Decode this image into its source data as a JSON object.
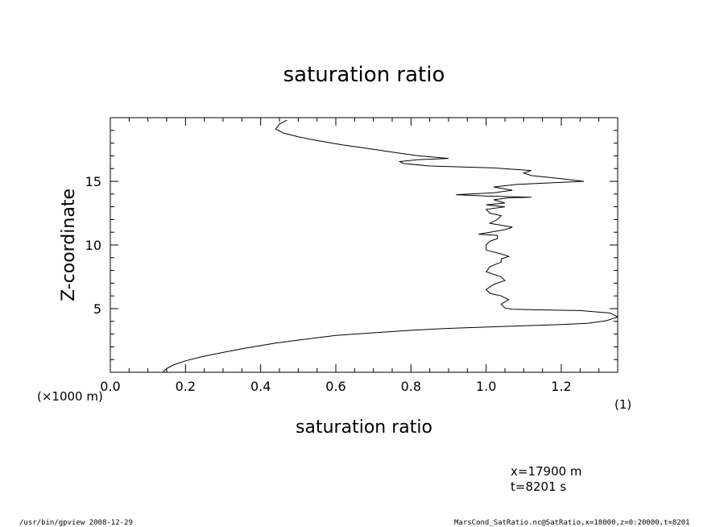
{
  "chart_data": {
    "type": "line",
    "title": "saturation ratio",
    "xlabel": "saturation ratio",
    "ylabel": "Z-coordinate",
    "x_unit_label": "(1)",
    "y_unit_label": "(×1000 m)",
    "xlim": [
      0.0,
      1.35
    ],
    "ylim": [
      0,
      20
    ],
    "xticks": [
      0.0,
      0.2,
      0.4,
      0.6,
      0.8,
      1.0,
      1.2
    ],
    "yticks": [
      5,
      10,
      15
    ],
    "xtick_labels": [
      "0.0",
      "0.2",
      "0.4",
      "0.6",
      "0.8",
      "1.0",
      "1.2"
    ],
    "ytick_labels": [
      "5",
      "10",
      "15"
    ],
    "grid": false,
    "series": [
      {
        "points": [
          [
            0.14,
            0.0
          ],
          [
            0.15,
            0.3
          ],
          [
            0.17,
            0.6
          ],
          [
            0.2,
            0.9
          ],
          [
            0.24,
            1.2
          ],
          [
            0.29,
            1.5
          ],
          [
            0.36,
            1.9
          ],
          [
            0.44,
            2.3
          ],
          [
            0.52,
            2.6
          ],
          [
            0.6,
            2.9
          ],
          [
            0.7,
            3.1
          ],
          [
            0.8,
            3.3
          ],
          [
            0.9,
            3.45
          ],
          [
            1.0,
            3.55
          ],
          [
            1.1,
            3.65
          ],
          [
            1.2,
            3.75
          ],
          [
            1.27,
            3.85
          ],
          [
            1.32,
            4.05
          ],
          [
            1.35,
            4.35
          ],
          [
            1.33,
            4.65
          ],
          [
            1.25,
            4.85
          ],
          [
            1.15,
            4.9
          ],
          [
            1.07,
            4.95
          ],
          [
            1.05,
            5.05
          ],
          [
            1.04,
            5.35
          ],
          [
            1.06,
            5.7
          ],
          [
            1.04,
            6.0
          ],
          [
            1.01,
            6.2
          ],
          [
            1.0,
            6.5
          ],
          [
            1.02,
            6.9
          ],
          [
            1.05,
            7.2
          ],
          [
            1.04,
            7.5
          ],
          [
            1.0,
            7.9
          ],
          [
            1.01,
            8.3
          ],
          [
            1.04,
            8.65
          ],
          [
            1.04,
            8.9
          ],
          [
            1.06,
            9.1
          ],
          [
            1.04,
            9.3
          ],
          [
            1.0,
            9.6
          ],
          [
            1.0,
            10.0
          ],
          [
            1.01,
            10.3
          ],
          [
            1.03,
            10.5
          ],
          [
            1.03,
            10.75
          ],
          [
            0.98,
            10.85
          ],
          [
            1.01,
            11.0
          ],
          [
            1.05,
            11.2
          ],
          [
            1.07,
            11.4
          ],
          [
            1.01,
            11.7
          ],
          [
            1.03,
            12.0
          ],
          [
            1.04,
            12.3
          ],
          [
            1.01,
            12.5
          ],
          [
            1.0,
            12.8
          ],
          [
            1.05,
            13.0
          ],
          [
            1.0,
            13.15
          ],
          [
            1.05,
            13.3
          ],
          [
            1.02,
            13.55
          ],
          [
            1.06,
            13.7
          ],
          [
            1.12,
            13.75
          ],
          [
            1.0,
            13.85
          ],
          [
            0.92,
            13.95
          ],
          [
            1.02,
            14.1
          ],
          [
            1.07,
            14.3
          ],
          [
            1.02,
            14.55
          ],
          [
            1.08,
            14.75
          ],
          [
            1.15,
            14.85
          ],
          [
            1.26,
            15.0
          ],
          [
            1.2,
            15.2
          ],
          [
            1.12,
            15.45
          ],
          [
            1.1,
            15.65
          ],
          [
            1.12,
            15.85
          ],
          [
            1.07,
            15.95
          ],
          [
            1.02,
            16.05
          ],
          [
            0.85,
            16.2
          ],
          [
            0.78,
            16.4
          ],
          [
            0.77,
            16.55
          ],
          [
            0.82,
            16.7
          ],
          [
            0.9,
            16.8
          ],
          [
            0.82,
            17.0
          ],
          [
            0.75,
            17.3
          ],
          [
            0.68,
            17.6
          ],
          [
            0.62,
            17.85
          ],
          [
            0.55,
            18.2
          ],
          [
            0.5,
            18.5
          ],
          [
            0.46,
            18.8
          ],
          [
            0.44,
            19.1
          ],
          [
            0.45,
            19.5
          ],
          [
            0.47,
            19.8
          ]
        ]
      }
    ],
    "annotations": [
      "x=17900  m",
      "t=8201  s"
    ]
  },
  "footer": {
    "left": "/usr/bin/gpview   2008-12-29",
    "right": "MarsCond_SatRatio.nc@SatRatio,x=18000,z=0:20000,t=8201"
  }
}
